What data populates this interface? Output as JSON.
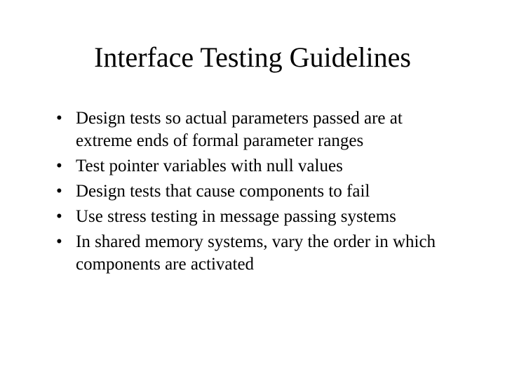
{
  "slide": {
    "title": "Interface Testing Guidelines",
    "bullets": [
      "Design tests so actual parameters passed are at extreme ends of formal parameter ranges",
      "Test pointer variables with null values",
      "Design tests that cause components to fail",
      "Use stress testing in message passing systems",
      "In shared memory systems, vary the order in which components are activated"
    ],
    "colors": {
      "background": "#ffffff",
      "text": "#000000"
    },
    "typography": {
      "title_fontsize_pt": 40,
      "body_fontsize_pt": 25,
      "font_family": "Times New Roman"
    }
  }
}
